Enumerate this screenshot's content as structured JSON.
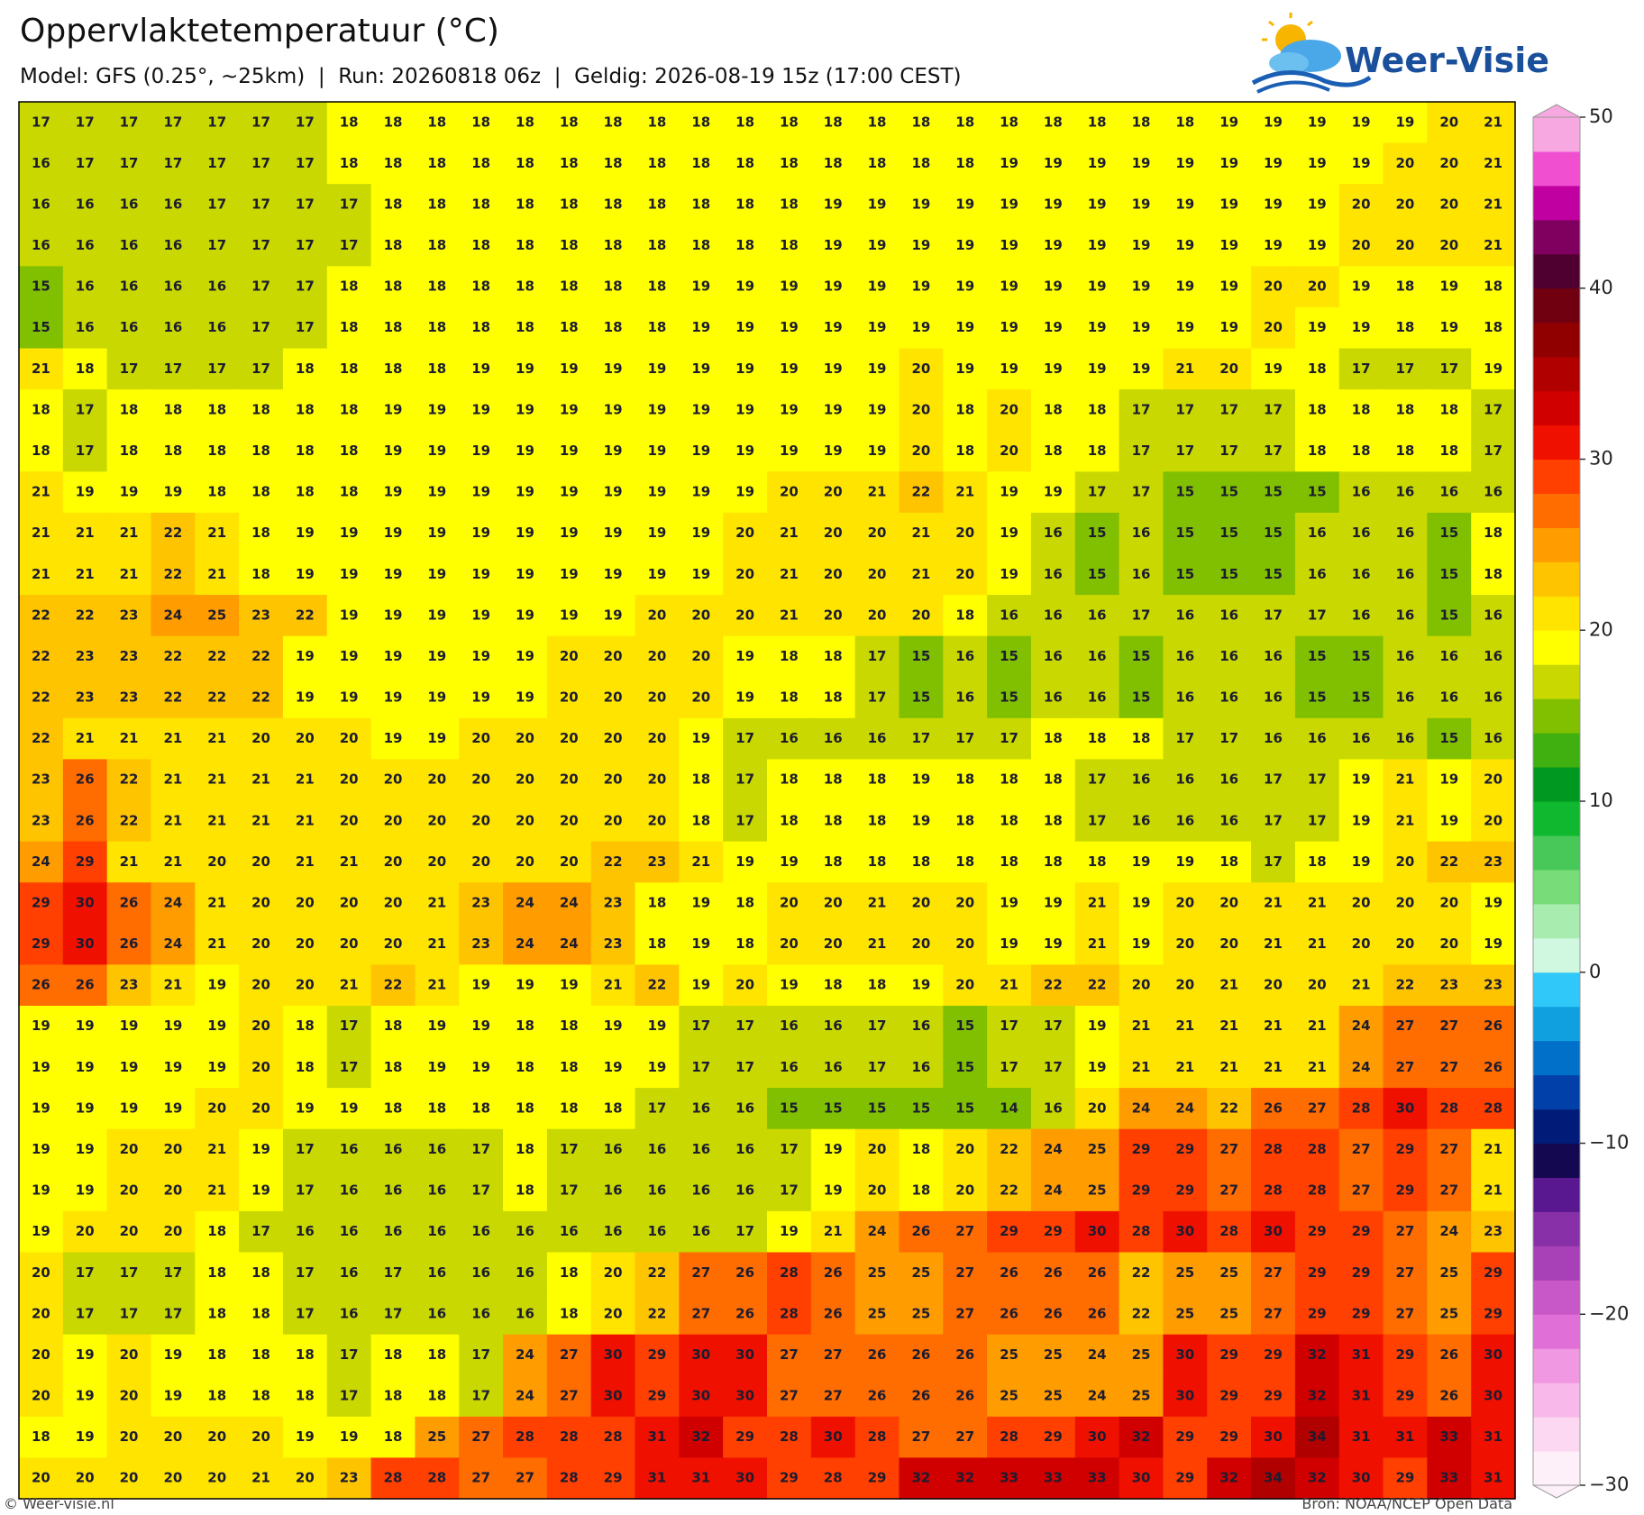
{
  "header": {
    "title": "Oppervlaktetemperatuur (°C)",
    "subtitle": "Model: GFS (0.25°, ~25km)  |  Run: 20260818 06z  |  Geldig: 2026-08-19 15z (17:00 CEST)"
  },
  "logo": {
    "text": "Weer-Visie"
  },
  "map": {
    "values": [
      [
        17,
        17,
        17,
        17,
        17,
        17,
        17,
        18,
        18,
        18,
        18,
        18,
        18,
        18,
        18,
        18,
        18,
        18,
        18,
        18,
        18,
        18,
        18,
        18,
        18,
        18,
        18,
        19,
        19,
        19,
        19,
        19,
        20,
        21
      ],
      [
        16,
        17,
        17,
        17,
        17,
        17,
        17,
        18,
        18,
        18,
        18,
        18,
        18,
        18,
        18,
        18,
        18,
        18,
        18,
        18,
        18,
        18,
        19,
        19,
        19,
        19,
        19,
        19,
        19,
        19,
        19,
        20,
        20,
        21
      ],
      [
        16,
        16,
        16,
        16,
        17,
        17,
        17,
        17,
        18,
        18,
        18,
        18,
        18,
        18,
        18,
        18,
        18,
        18,
        19,
        19,
        19,
        19,
        19,
        19,
        19,
        19,
        19,
        19,
        19,
        19,
        20,
        20,
        20,
        21
      ],
      [
        16,
        16,
        16,
        16,
        17,
        17,
        17,
        17,
        18,
        18,
        18,
        18,
        18,
        18,
        18,
        18,
        18,
        18,
        19,
        19,
        19,
        19,
        19,
        19,
        19,
        19,
        19,
        19,
        19,
        19,
        20,
        20,
        20,
        21
      ],
      [
        15,
        16,
        16,
        16,
        16,
        17,
        17,
        18,
        18,
        18,
        18,
        18,
        18,
        18,
        18,
        19,
        19,
        19,
        19,
        19,
        19,
        19,
        19,
        19,
        19,
        19,
        19,
        19,
        20,
        20,
        19,
        18,
        19,
        18
      ],
      [
        15,
        16,
        16,
        16,
        16,
        17,
        17,
        18,
        18,
        18,
        18,
        18,
        18,
        18,
        18,
        19,
        19,
        19,
        19,
        19,
        19,
        19,
        19,
        19,
        19,
        19,
        19,
        19,
        20,
        19,
        19,
        18,
        19,
        18
      ],
      [
        21,
        18,
        17,
        17,
        17,
        17,
        18,
        18,
        18,
        18,
        19,
        19,
        19,
        19,
        19,
        19,
        19,
        19,
        19,
        19,
        20,
        19,
        19,
        19,
        19,
        19,
        21,
        20,
        19,
        18,
        17,
        17,
        17,
        19
      ],
      [
        18,
        17,
        18,
        18,
        18,
        18,
        18,
        18,
        19,
        19,
        19,
        19,
        19,
        19,
        19,
        19,
        19,
        19,
        19,
        19,
        20,
        18,
        20,
        18,
        18,
        17,
        17,
        17,
        17,
        18,
        18,
        18,
        18,
        17
      ],
      [
        18,
        17,
        18,
        18,
        18,
        18,
        18,
        18,
        19,
        19,
        19,
        19,
        19,
        19,
        19,
        19,
        19,
        19,
        19,
        19,
        20,
        18,
        20,
        18,
        18,
        17,
        17,
        17,
        17,
        18,
        18,
        18,
        18,
        17
      ],
      [
        21,
        19,
        19,
        19,
        18,
        18,
        18,
        18,
        19,
        19,
        19,
        19,
        19,
        19,
        19,
        19,
        19,
        20,
        20,
        21,
        22,
        21,
        19,
        19,
        17,
        17,
        15,
        15,
        15,
        15,
        16,
        16,
        16,
        16
      ],
      [
        21,
        21,
        21,
        22,
        21,
        18,
        19,
        19,
        19,
        19,
        19,
        19,
        19,
        19,
        19,
        19,
        20,
        21,
        20,
        20,
        21,
        20,
        19,
        16,
        15,
        16,
        15,
        15,
        15,
        16,
        16,
        16,
        15,
        18
      ],
      [
        21,
        21,
        21,
        22,
        21,
        18,
        19,
        19,
        19,
        19,
        19,
        19,
        19,
        19,
        19,
        19,
        20,
        21,
        20,
        20,
        21,
        20,
        19,
        16,
        15,
        16,
        15,
        15,
        15,
        16,
        16,
        16,
        15,
        18
      ],
      [
        22,
        22,
        23,
        24,
        25,
        23,
        22,
        19,
        19,
        19,
        19,
        19,
        19,
        19,
        20,
        20,
        20,
        21,
        20,
        20,
        20,
        18,
        16,
        16,
        16,
        17,
        16,
        16,
        17,
        17,
        16,
        16,
        15,
        16
      ],
      [
        22,
        23,
        23,
        22,
        22,
        22,
        19,
        19,
        19,
        19,
        19,
        19,
        20,
        20,
        20,
        20,
        19,
        18,
        18,
        17,
        15,
        16,
        15,
        16,
        16,
        15,
        16,
        16,
        16,
        15,
        15,
        16,
        16,
        16
      ],
      [
        22,
        23,
        23,
        22,
        22,
        22,
        19,
        19,
        19,
        19,
        19,
        19,
        20,
        20,
        20,
        20,
        19,
        18,
        18,
        17,
        15,
        16,
        15,
        16,
        16,
        15,
        16,
        16,
        16,
        15,
        15,
        16,
        16,
        16
      ],
      [
        22,
        21,
        21,
        21,
        21,
        20,
        20,
        20,
        19,
        19,
        20,
        20,
        20,
        20,
        20,
        19,
        17,
        16,
        16,
        16,
        17,
        17,
        17,
        18,
        18,
        18,
        17,
        17,
        16,
        16,
        16,
        16,
        15,
        16
      ],
      [
        23,
        26,
        22,
        21,
        21,
        21,
        21,
        20,
        20,
        20,
        20,
        20,
        20,
        20,
        20,
        18,
        17,
        18,
        18,
        18,
        19,
        18,
        18,
        18,
        17,
        16,
        16,
        16,
        17,
        17,
        19,
        21,
        19,
        20
      ],
      [
        23,
        26,
        22,
        21,
        21,
        21,
        21,
        20,
        20,
        20,
        20,
        20,
        20,
        20,
        20,
        18,
        17,
        18,
        18,
        18,
        19,
        18,
        18,
        18,
        17,
        16,
        16,
        16,
        17,
        17,
        19,
        21,
        19,
        20
      ],
      [
        24,
        29,
        21,
        21,
        20,
        20,
        21,
        21,
        20,
        20,
        20,
        20,
        20,
        22,
        23,
        21,
        19,
        19,
        18,
        18,
        18,
        18,
        18,
        18,
        18,
        19,
        19,
        18,
        17,
        18,
        19,
        20,
        22,
        23
      ],
      [
        29,
        30,
        26,
        24,
        21,
        20,
        20,
        20,
        20,
        21,
        23,
        24,
        24,
        23,
        18,
        19,
        18,
        20,
        20,
        21,
        20,
        20,
        19,
        19,
        21,
        19,
        20,
        20,
        21,
        21,
        20,
        20,
        20,
        19
      ],
      [
        29,
        30,
        26,
        24,
        21,
        20,
        20,
        20,
        20,
        21,
        23,
        24,
        24,
        23,
        18,
        19,
        18,
        20,
        20,
        21,
        20,
        20,
        19,
        19,
        21,
        19,
        20,
        20,
        21,
        21,
        20,
        20,
        20,
        19
      ],
      [
        26,
        26,
        23,
        21,
        19,
        20,
        20,
        21,
        22,
        21,
        19,
        19,
        19,
        21,
        22,
        19,
        20,
        19,
        18,
        18,
        19,
        20,
        21,
        22,
        22,
        20,
        20,
        21,
        20,
        20,
        21,
        22,
        23,
        23
      ],
      [
        19,
        19,
        19,
        19,
        19,
        20,
        18,
        17,
        18,
        19,
        19,
        18,
        18,
        19,
        19,
        17,
        17,
        16,
        16,
        17,
        16,
        15,
        17,
        17,
        19,
        21,
        21,
        21,
        21,
        21,
        24,
        27,
        27,
        26
      ],
      [
        19,
        19,
        19,
        19,
        19,
        20,
        18,
        17,
        18,
        19,
        19,
        18,
        18,
        19,
        19,
        17,
        17,
        16,
        16,
        17,
        16,
        15,
        17,
        17,
        19,
        21,
        21,
        21,
        21,
        21,
        24,
        27,
        27,
        26
      ],
      [
        19,
        19,
        19,
        19,
        20,
        20,
        19,
        19,
        18,
        18,
        18,
        18,
        18,
        18,
        17,
        16,
        16,
        15,
        15,
        15,
        15,
        15,
        14,
        16,
        20,
        24,
        24,
        22,
        26,
        27,
        28,
        30,
        28,
        28
      ],
      [
        19,
        19,
        20,
        20,
        21,
        19,
        17,
        16,
        16,
        16,
        17,
        18,
        17,
        16,
        16,
        16,
        16,
        17,
        19,
        20,
        18,
        20,
        22,
        24,
        25,
        29,
        29,
        27,
        28,
        28,
        27,
        29,
        27,
        21
      ],
      [
        19,
        19,
        20,
        20,
        21,
        19,
        17,
        16,
        16,
        16,
        17,
        18,
        17,
        16,
        16,
        16,
        16,
        17,
        19,
        20,
        18,
        20,
        22,
        24,
        25,
        29,
        29,
        27,
        28,
        28,
        27,
        29,
        27,
        21
      ],
      [
        19,
        20,
        20,
        20,
        18,
        17,
        16,
        16,
        16,
        16,
        16,
        16,
        16,
        16,
        16,
        16,
        17,
        19,
        21,
        24,
        26,
        27,
        29,
        29,
        30,
        28,
        30,
        28,
        30,
        29,
        29,
        27,
        24,
        23
      ],
      [
        20,
        17,
        17,
        17,
        18,
        18,
        17,
        16,
        17,
        16,
        16,
        16,
        18,
        20,
        22,
        27,
        26,
        28,
        26,
        25,
        25,
        27,
        26,
        26,
        26,
        22,
        25,
        25,
        27,
        29,
        29,
        27,
        25,
        29
      ],
      [
        20,
        17,
        17,
        17,
        18,
        18,
        17,
        16,
        17,
        16,
        16,
        16,
        18,
        20,
        22,
        27,
        26,
        28,
        26,
        25,
        25,
        27,
        26,
        26,
        26,
        22,
        25,
        25,
        27,
        29,
        29,
        27,
        25,
        29
      ],
      [
        20,
        19,
        20,
        19,
        18,
        18,
        18,
        17,
        18,
        18,
        17,
        24,
        27,
        30,
        29,
        30,
        30,
        27,
        27,
        26,
        26,
        26,
        25,
        25,
        24,
        25,
        30,
        29,
        29,
        32,
        31,
        29,
        26,
        30
      ],
      [
        20,
        19,
        20,
        19,
        18,
        18,
        18,
        17,
        18,
        18,
        17,
        24,
        27,
        30,
        29,
        30,
        30,
        27,
        27,
        26,
        26,
        26,
        25,
        25,
        24,
        25,
        30,
        29,
        29,
        32,
        31,
        29,
        26,
        30
      ],
      [
        18,
        19,
        20,
        20,
        20,
        20,
        19,
        19,
        18,
        25,
        27,
        28,
        28,
        28,
        31,
        32,
        29,
        28,
        30,
        28,
        27,
        27,
        28,
        29,
        30,
        32,
        29,
        29,
        30,
        34,
        31,
        31,
        33,
        31
      ],
      [
        20,
        20,
        20,
        20,
        20,
        21,
        20,
        23,
        28,
        28,
        27,
        27,
        28,
        29,
        31,
        31,
        30,
        29,
        28,
        29,
        32,
        32,
        33,
        33,
        33,
        30,
        29,
        32,
        34,
        32,
        30,
        29,
        33,
        31
      ]
    ]
  },
  "colorbar": {
    "lim": [
      -30,
      50
    ],
    "ticks": [
      50,
      40,
      30,
      20,
      10,
      0,
      {
        "value": -10,
        "label": "−10"
      },
      {
        "value": -20,
        "label": "−20"
      },
      {
        "value": -30,
        "label": "−30"
      }
    ],
    "colors": [
      "#fdf0f8",
      "#fdd8f2",
      "#f8b8ea",
      "#f098e2",
      "#e070d8",
      "#c858c8",
      "#a840b8",
      "#8830a8",
      "#5a1890",
      "#140850",
      "#001c78",
      "#0040a8",
      "#0070c8",
      "#10a0e0",
      "#30c8f8",
      "#d0f8e0",
      "#a8ecb0",
      "#78dc78",
      "#48c858",
      "#10b830",
      "#009820",
      "#40b010",
      "#80c000",
      "#c8d800",
      "#ffff00",
      "#ffe400",
      "#ffc400",
      "#ff9c00",
      "#ff6c00",
      "#ff4000",
      "#f01000",
      "#d00000",
      "#b00000",
      "#900000",
      "#700010",
      "#500030",
      "#800060",
      "#c000a0",
      "#f050d0",
      "#f8a8e0"
    ]
  },
  "footer": {
    "left": "© Weer-visie.nl",
    "right": "Bron: NOAA/NCEP Open Data"
  }
}
